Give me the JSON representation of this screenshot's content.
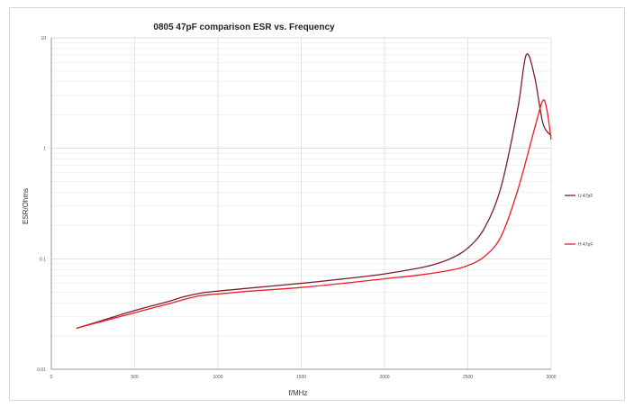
{
  "chart_data": {
    "type": "line",
    "title": "0805 47pF comparison ESR vs. Frequency",
    "xlabel": "f/MHz",
    "ylabel": "ESR/Ohms",
    "xlim": [
      0,
      3000
    ],
    "ylim": [
      0.01,
      10
    ],
    "yscale": "log",
    "x_ticks": [
      "0",
      "500",
      "1000",
      "1500",
      "2000",
      "2500",
      "3000"
    ],
    "y_ticks": [
      "0.01",
      "0.1",
      "1",
      "10"
    ],
    "y_tick_values": [
      0.01,
      0.1,
      1,
      10
    ],
    "grid": true,
    "legend_position": "right",
    "series": [
      {
        "name": "U 47pF",
        "color": "#7a1f2b",
        "x": [
          150,
          300,
          500,
          700,
          800,
          900,
          1000,
          1200,
          1500,
          1800,
          2000,
          2200,
          2300,
          2400,
          2500,
          2600,
          2700,
          2800,
          2850,
          2900,
          2950,
          3000
        ],
        "y": [
          0.0235,
          0.0275,
          0.034,
          0.041,
          0.0455,
          0.049,
          0.051,
          0.0545,
          0.06,
          0.067,
          0.073,
          0.082,
          0.089,
          0.101,
          0.125,
          0.19,
          0.45,
          2.3,
          7.0,
          4.5,
          1.7,
          1.3
        ]
      },
      {
        "name": "H 47pF",
        "color": "#ee1c25",
        "x": [
          150,
          300,
          500,
          700,
          800,
          900,
          1000,
          1200,
          1500,
          1800,
          2000,
          2200,
          2400,
          2500,
          2600,
          2700,
          2800,
          2900,
          2950,
          2975,
          3000
        ],
        "y": [
          0.0235,
          0.027,
          0.0325,
          0.039,
          0.043,
          0.0465,
          0.048,
          0.051,
          0.055,
          0.061,
          0.066,
          0.071,
          0.079,
          0.087,
          0.105,
          0.16,
          0.42,
          1.5,
          2.7,
          2.2,
          1.2
        ]
      }
    ]
  }
}
